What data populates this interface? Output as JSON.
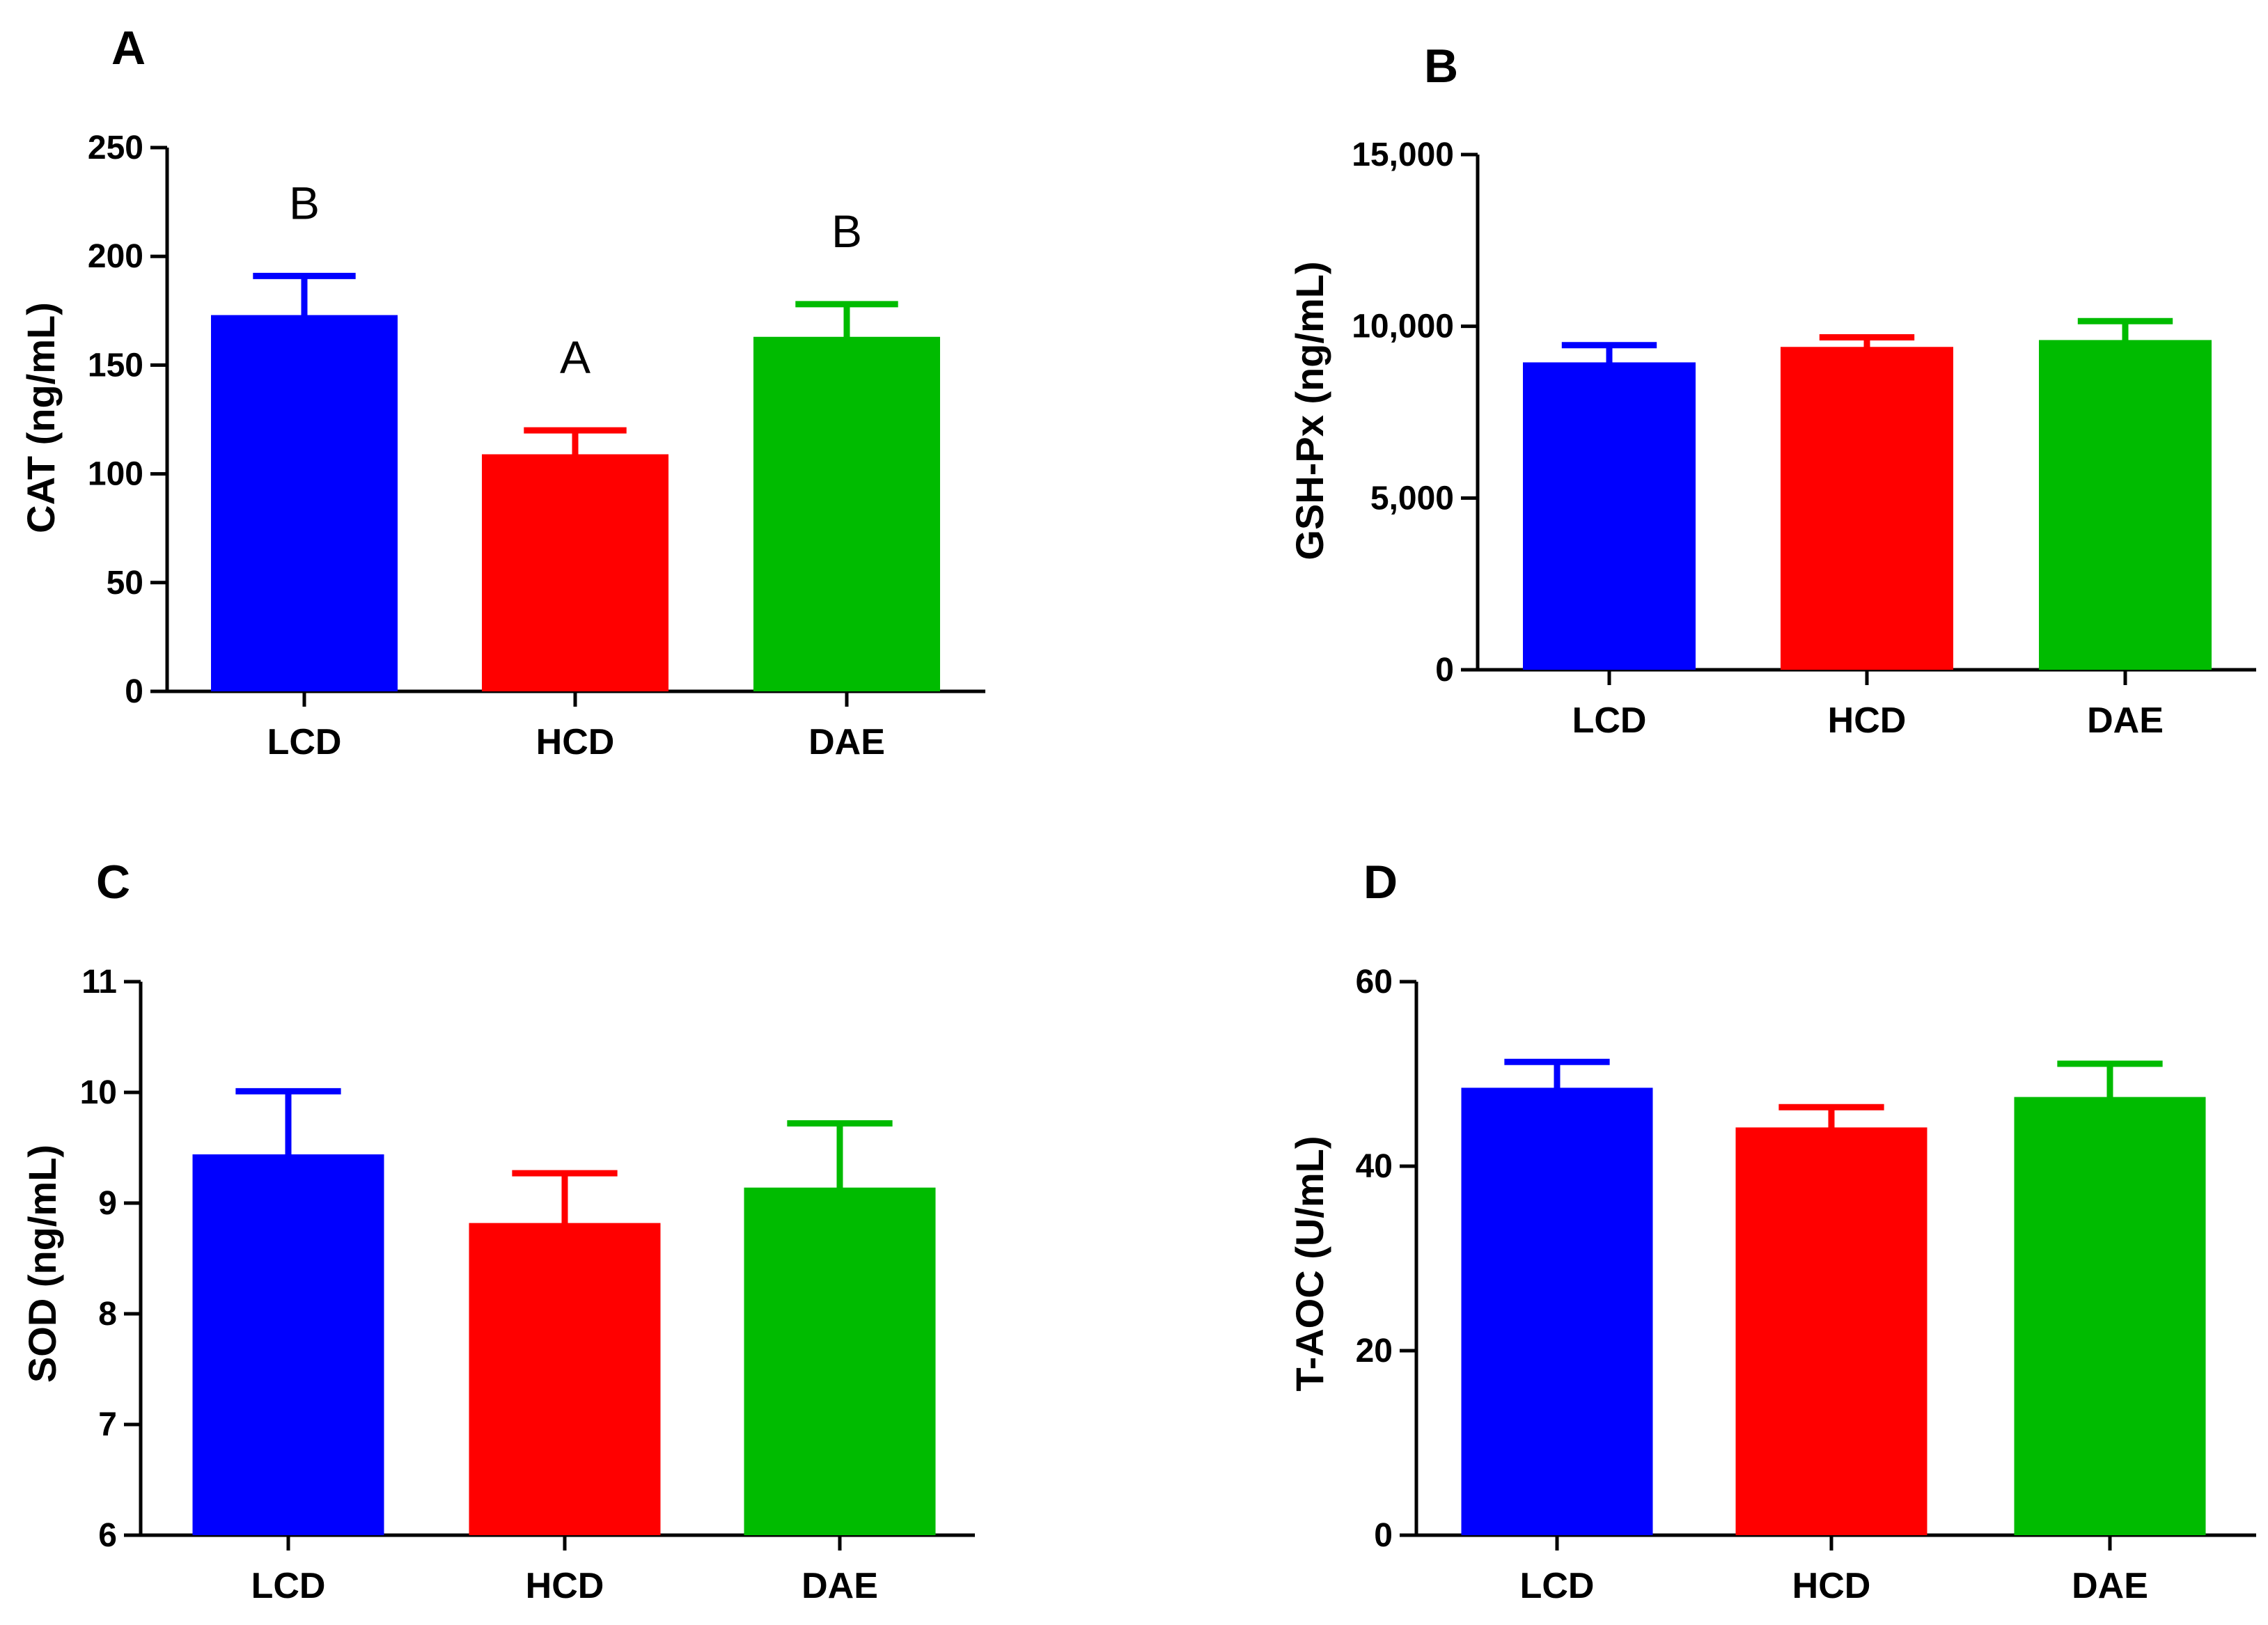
{
  "colors": {
    "LCD": "#0000ff",
    "HCD": "#ff0000",
    "DAE": "#00bb00",
    "axis": "#000000"
  },
  "chart_data": [
    {
      "panel": "A",
      "type": "bar",
      "ylabel": "CAT (ng/mL)",
      "categories": [
        "LCD",
        "HCD",
        "DAE"
      ],
      "values": [
        173,
        109,
        163
      ],
      "errors": [
        18,
        11,
        15
      ],
      "sig_letters": [
        "B",
        "A",
        "B"
      ],
      "ylim": [
        0,
        250
      ],
      "yticks": [
        0,
        50,
        100,
        150,
        200,
        250
      ],
      "ytick_labels": [
        "0",
        "50",
        "100",
        "150",
        "200",
        "250"
      ]
    },
    {
      "panel": "B",
      "type": "bar",
      "ylabel": "GSH-Px (ng/mL)",
      "categories": [
        "LCD",
        "HCD",
        "DAE"
      ],
      "values": [
        8950,
        9400,
        9600
      ],
      "errors": [
        500,
        280,
        550
      ],
      "sig_letters": [
        "",
        "",
        ""
      ],
      "ylim": [
        0,
        15000
      ],
      "yticks": [
        0,
        5000,
        10000,
        15000
      ],
      "ytick_labels": [
        "0",
        "5,000",
        "10,000",
        "15,000"
      ]
    },
    {
      "panel": "C",
      "type": "bar",
      "ylabel": "SOD (ng/mL)",
      "categories": [
        "LCD",
        "HCD",
        "DAE"
      ],
      "values": [
        9.44,
        8.82,
        9.14
      ],
      "errors": [
        0.57,
        0.45,
        0.58
      ],
      "sig_letters": [
        "",
        "",
        ""
      ],
      "ylim": [
        6,
        11
      ],
      "yticks": [
        6,
        7,
        8,
        9,
        10,
        11
      ],
      "ytick_labels": [
        "6",
        "7",
        "8",
        "9",
        "10",
        "11"
      ]
    },
    {
      "panel": "D",
      "type": "bar",
      "ylabel": "T-AOC (U/mL)",
      "categories": [
        "LCD",
        "HCD",
        "DAE"
      ],
      "values": [
        48.5,
        44.2,
        47.5
      ],
      "errors": [
        2.8,
        2.2,
        3.6
      ],
      "sig_letters": [
        "",
        "",
        ""
      ],
      "ylim": [
        0,
        60
      ],
      "yticks": [
        0,
        20,
        40,
        60
      ],
      "ytick_labels": [
        "0",
        "20",
        "40",
        "60"
      ]
    }
  ]
}
